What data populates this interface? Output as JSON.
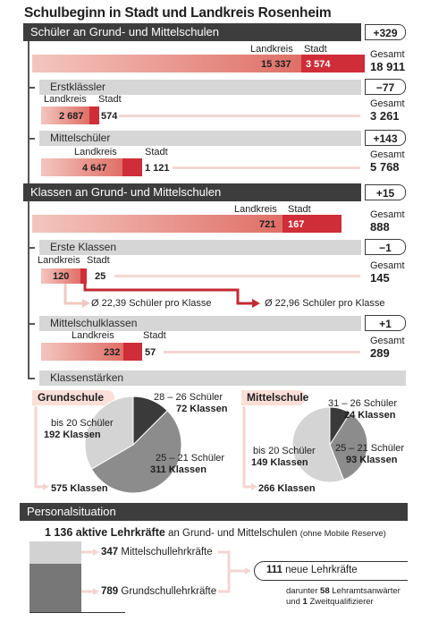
{
  "title": "Schulbeginn in Stadt und Landkreis Rosenheim",
  "sections": {
    "schueler": {
      "header": "Schüler an Grund- und Mittelschulen",
      "delta": "+329",
      "landkreis_label": "Landkreis",
      "stadt_label": "Stadt",
      "landkreis_value": "15 337",
      "stadt_value": "3 574",
      "gesamt_label": "Gesamt",
      "gesamt_value": "18 911"
    },
    "erstklaessler": {
      "header": "Erstklässler",
      "delta": "−77",
      "landkreis_label": "Landkreis",
      "stadt_label": "Stadt",
      "landkreis_value": "2 687",
      "stadt_value": "574",
      "gesamt_label": "Gesamt",
      "gesamt_value": "3 261"
    },
    "mittelschueler": {
      "header": "Mittelschüler",
      "delta": "+143",
      "landkreis_label": "Landkreis",
      "stadt_label": "Stadt",
      "landkreis_value": "4 647",
      "stadt_value": "1 121",
      "gesamt_label": "Gesamt",
      "gesamt_value": "5 768"
    },
    "klassen": {
      "header": "Klassen an Grund- und Mittelschulen",
      "delta": "+15",
      "landkreis_label": "Landkreis",
      "stadt_label": "Stadt",
      "landkreis_value": "721",
      "stadt_value": "167",
      "gesamt_label": "Gesamt",
      "gesamt_value": "888"
    },
    "erste_klassen": {
      "header": "Erste Klassen",
      "delta": "−1",
      "landkreis_label": "Landkreis",
      "stadt_label": "Stadt",
      "landkreis_value": "120",
      "stadt_value": "25",
      "gesamt_label": "Gesamt",
      "gesamt_value": "145",
      "avg_landkreis": "Ø 22,39 Schüler pro Klasse",
      "avg_stadt": "Ø 22,96 Schüler pro Klasse"
    },
    "mittelschulklassen": {
      "header": "Mittelschulklassen",
      "delta": "+1",
      "landkreis_label": "Landkreis",
      "stadt_label": "Stadt",
      "landkreis_value": "232",
      "stadt_value": "57",
      "gesamt_label": "Gesamt",
      "gesamt_value": "289"
    },
    "klassenstaerken": {
      "header": "Klassenstärken",
      "grundschule": {
        "label": "Grundschule",
        "total": "575 Klassen",
        "slices": [
          {
            "range": "28 – 26 Schüler",
            "count": "72 Klassen"
          },
          {
            "range": "25 – 21 Schüler",
            "count": "311 Klassen"
          },
          {
            "range": "bis 20 Schüler",
            "count": "192 Klassen"
          }
        ]
      },
      "mittelschule": {
        "label": "Mittelschule",
        "total": "266 Klassen",
        "slices": [
          {
            "range": "31 – 26 Schüler",
            "count": "24 Klassen"
          },
          {
            "range": "25 – 21 Schüler",
            "count": "93 Klassen"
          },
          {
            "range": "bis 20 Schüler",
            "count": "149 Klassen"
          }
        ]
      }
    },
    "personal": {
      "header": "Personalsituation",
      "headline_bold": "1 136 aktive Lehrkräfte",
      "headline_rest": "an Grund- und Mittelschulen",
      "headline_note": "(ohne Mobile Reserve)",
      "mittelschul_num": "347",
      "mittelschul_label": "Mittelschullehrkräfte",
      "grundschul_num": "789",
      "grundschul_label": "Grundschullehrkräfte",
      "neue_num": "111",
      "neue_label": "neue Lehrkräfte",
      "darunter_pre": "darunter",
      "darunter_num1": "58",
      "darunter_text1": "Lehramtsanwärter",
      "darunter_und": "und",
      "darunter_num2": "1",
      "darunter_text2": "Zweitqualifizierer"
    }
  },
  "chart_data": [
    {
      "type": "bar",
      "title": "Schüler an Grund- und Mittelschulen",
      "categories": [
        "Landkreis",
        "Stadt"
      ],
      "values": [
        15337,
        3574
      ],
      "total": 18911,
      "change": 329
    },
    {
      "type": "bar",
      "title": "Erstklässler",
      "categories": [
        "Landkreis",
        "Stadt"
      ],
      "values": [
        2687,
        574
      ],
      "total": 3261,
      "change": -77
    },
    {
      "type": "bar",
      "title": "Mittelschüler",
      "categories": [
        "Landkreis",
        "Stadt"
      ],
      "values": [
        4647,
        1121
      ],
      "total": 5768,
      "change": 143
    },
    {
      "type": "bar",
      "title": "Klassen an Grund- und Mittelschulen",
      "categories": [
        "Landkreis",
        "Stadt"
      ],
      "values": [
        721,
        167
      ],
      "total": 888,
      "change": 15
    },
    {
      "type": "bar",
      "title": "Erste Klassen",
      "categories": [
        "Landkreis",
        "Stadt"
      ],
      "values": [
        120,
        25
      ],
      "total": 145,
      "change": -1
    },
    {
      "type": "bar",
      "title": "Mittelschulklassen",
      "categories": [
        "Landkreis",
        "Stadt"
      ],
      "values": [
        232,
        57
      ],
      "total": 289,
      "change": 1
    },
    {
      "type": "pie",
      "title": "Grundschule",
      "categories": [
        "28 – 26 Schüler",
        "25 – 21 Schüler",
        "bis 20 Schüler"
      ],
      "values": [
        72,
        311,
        192
      ],
      "total": 575
    },
    {
      "type": "pie",
      "title": "Mittelschule",
      "categories": [
        "31 – 26 Schüler",
        "25 – 21 Schüler",
        "bis 20 Schüler"
      ],
      "values": [
        24,
        93,
        149
      ],
      "total": 266
    },
    {
      "type": "bar",
      "title": "Personalsituation",
      "categories": [
        "Mittelschullehrkräfte",
        "Grundschullehrkräfte"
      ],
      "values": [
        347,
        789
      ],
      "total": 1136
    }
  ],
  "colors": {
    "landkreis": "#df6f66",
    "stadt": "#cf2d37",
    "header_dark": "#3d3d3d",
    "header_grey": "#d6d6d6",
    "pie_dark": "#3a3a3a",
    "pie_mid": "#8c8c8c",
    "pie_light": "#d4d4d4"
  }
}
